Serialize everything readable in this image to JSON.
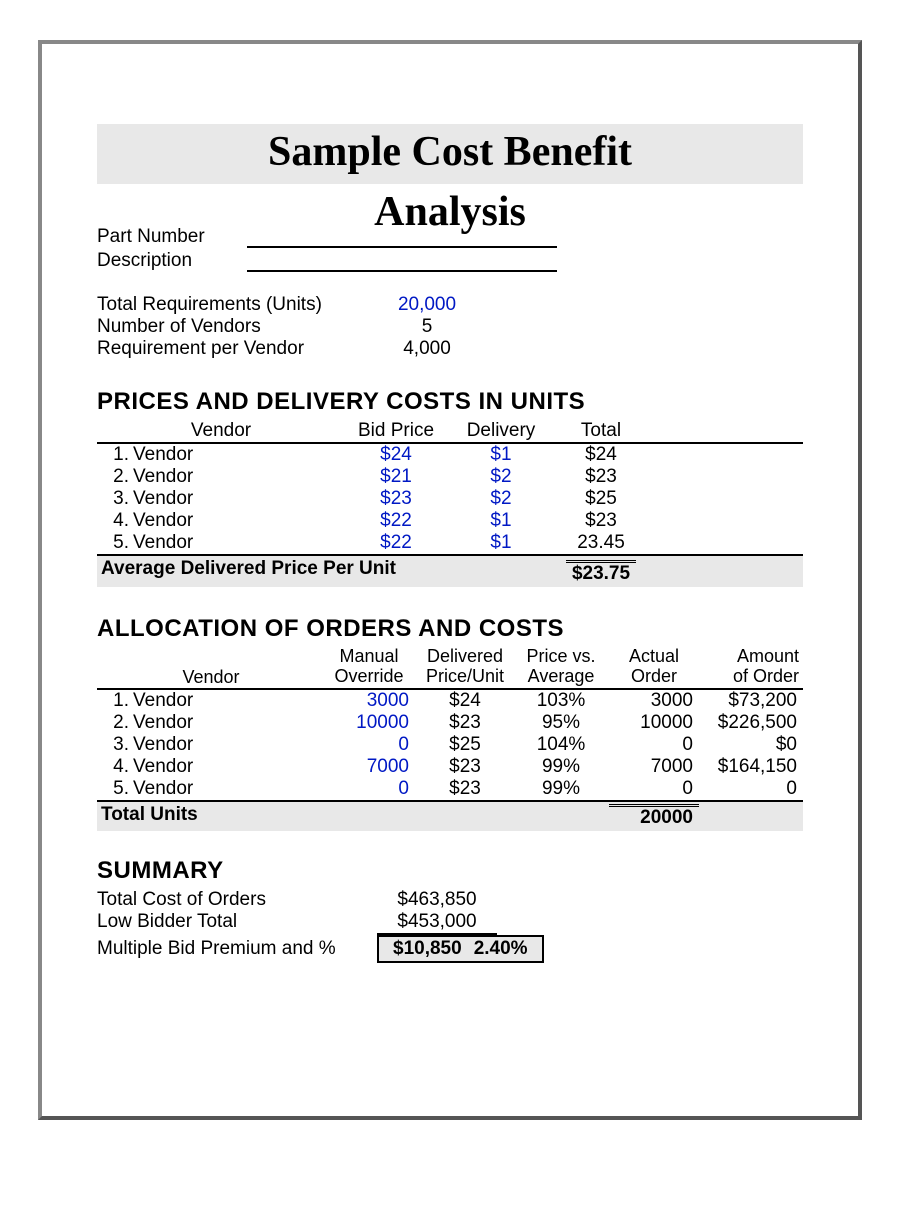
{
  "title_line1": "Sample Cost Benefit",
  "title_line2": "Analysis",
  "form": {
    "part_number_label": "Part Number",
    "description_label": "Description"
  },
  "stats": {
    "total_req_label": "Total Requirements (Units)",
    "total_req_value": "20,000",
    "num_vendors_label": "Number of Vendors",
    "num_vendors_value": "5",
    "req_per_vendor_label": "Requirement per Vendor",
    "req_per_vendor_value": "4,000"
  },
  "prices": {
    "heading": "PRICES AND DELIVERY COSTS IN UNITS",
    "head_vendor": "Vendor",
    "head_bid": "Bid Price",
    "head_delivery": "Delivery",
    "head_total": "Total",
    "rows": [
      {
        "n": "1.",
        "name": "Vendor",
        "bid": "$24",
        "del": "$1",
        "tot": "$24"
      },
      {
        "n": "2.",
        "name": "Vendor",
        "bid": "$21",
        "del": "$2",
        "tot": "$23"
      },
      {
        "n": "3.",
        "name": "Vendor",
        "bid": "$23",
        "del": "$2",
        "tot": "$25"
      },
      {
        "n": "4.",
        "name": "Vendor",
        "bid": "$22",
        "del": "$1",
        "tot": "$23"
      },
      {
        "n": "5.",
        "name": "Vendor",
        "bid": "$22",
        "del": "$1",
        "tot": "23.45"
      }
    ],
    "avg_label": "Average Delivered Price Per Unit",
    "avg_value": "$23.75"
  },
  "allocation": {
    "heading": "ALLOCATION OF ORDERS AND COSTS",
    "head_vendor": "Vendor",
    "h1a": "Manual",
    "h1b": "Override",
    "h2a": "Delivered",
    "h2b": "Price/Unit",
    "h3a": "Price vs.",
    "h3b": "Average",
    "h4a": "Actual",
    "h4b": "Order",
    "h5a": "Amount",
    "h5b": "of Order",
    "rows": [
      {
        "n": "1.",
        "name": "Vendor",
        "ov": "3000",
        "pu": "$24",
        "pv": "103%",
        "ao": "3000",
        "am": "$73,200"
      },
      {
        "n": "2.",
        "name": "Vendor",
        "ov": "10000",
        "pu": "$23",
        "pv": "95%",
        "ao": "10000",
        "am": "$226,500"
      },
      {
        "n": "3.",
        "name": "Vendor",
        "ov": "0",
        "pu": "$25",
        "pv": "104%",
        "ao": "0",
        "am": "$0"
      },
      {
        "n": "4.",
        "name": "Vendor",
        "ov": "7000",
        "pu": "$23",
        "pv": "99%",
        "ao": "7000",
        "am": "$164,150"
      },
      {
        "n": "5.",
        "name": "Vendor",
        "ov": "0",
        "pu": "$23",
        "pv": "99%",
        "ao": "0",
        "am": "0"
      }
    ],
    "total_label": "Total Units",
    "total_value": "20000"
  },
  "summary": {
    "heading": "SUMMARY",
    "r1_label": "Total Cost of Orders",
    "r1_value": "$463,850",
    "r2_label": "Low Bidder Total",
    "r2_value": "$453,000",
    "r3_label": "Multiple Bid Premium and %",
    "r3_val1": "$10,850",
    "r3_val2": "2.40%"
  }
}
